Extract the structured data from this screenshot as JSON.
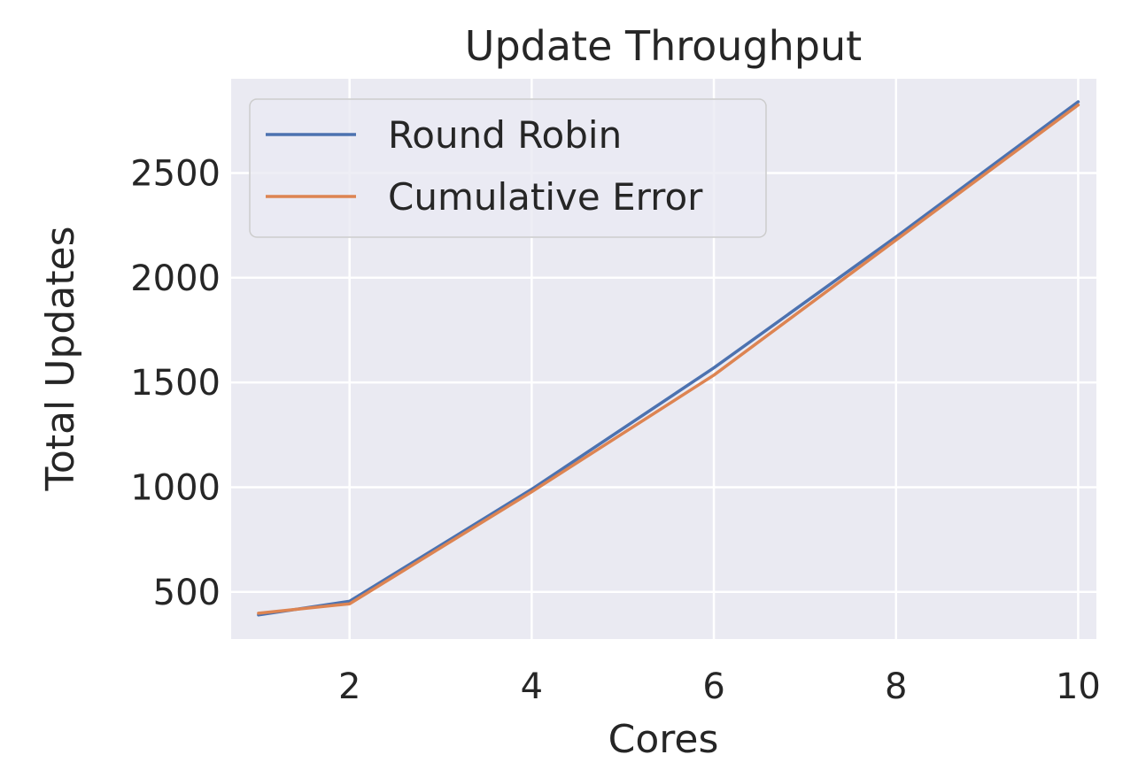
{
  "chart_data": {
    "type": "line",
    "title": "Update Throughput",
    "xlabel": "Cores",
    "ylabel": "Total Updates",
    "x": [
      1,
      2,
      4,
      6,
      8,
      10
    ],
    "series": [
      {
        "name": "Round Robin",
        "values": [
          390,
          455,
          990,
          1570,
          2195,
          2840
        ]
      },
      {
        "name": "Cumulative Error",
        "values": [
          398,
          443,
          978,
          1535,
          2180,
          2825
        ]
      }
    ],
    "xlim": [
      0.7,
      10.2
    ],
    "ylim": [
      275,
      2950
    ],
    "xticks": [
      2,
      4,
      6,
      8,
      10
    ],
    "xtick_labels": [
      "2",
      "4",
      "6",
      "8",
      "10"
    ],
    "yticks": [
      500,
      1000,
      1500,
      2000,
      2500
    ],
    "ytick_labels": [
      "500",
      "1000",
      "1500",
      "2000",
      "2500"
    ],
    "grid": true,
    "legend_position": "upper-left",
    "colors": {
      "background": "#eaeaf2",
      "grid": "#ffffff",
      "series": [
        "#4c72b0",
        "#dd8452"
      ],
      "text": "#262626"
    }
  }
}
